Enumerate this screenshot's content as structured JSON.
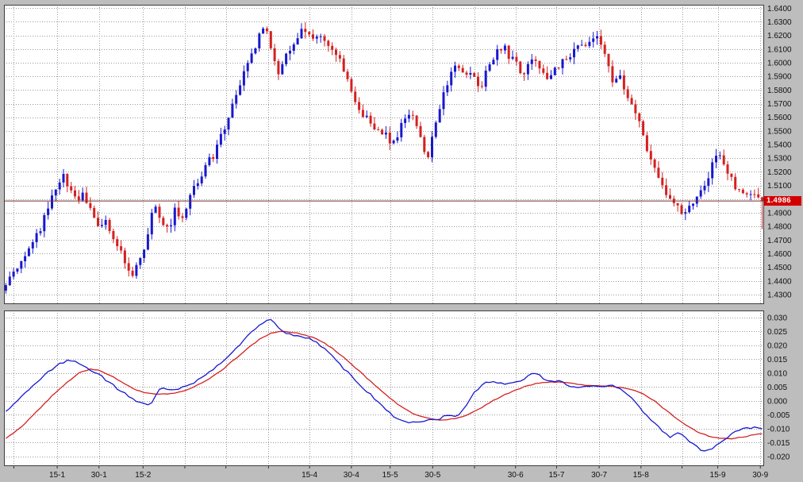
{
  "window": {
    "background_color": "#bdbdbd",
    "panel_background": "#ffffff",
    "panel_border_color": "#3c3c3c",
    "grid_color": "#9a9a9a",
    "label_color": "#111111"
  },
  "chart_data": {
    "type": "candlestick",
    "title": "",
    "price_panel": {
      "type": "candlestick",
      "y_axis_labels": [
        "1.6400",
        "1.6300",
        "1.6200",
        "1.6100",
        "1.6000",
        "1.5900",
        "1.5800",
        "1.5700",
        "1.5600",
        "1.5500",
        "1.5400",
        "1.5300",
        "1.5200",
        "1.5100",
        "1.5000",
        "1.4900",
        "1.4800",
        "1.4700",
        "1.4600",
        "1.4500",
        "1.4400",
        "1.4300"
      ],
      "y_min": 1.423,
      "y_max": 1.6425,
      "current_price": 1.4986,
      "current_price_label": "1.4986",
      "last_candle_low": 1.478,
      "candle_count": 198,
      "candle_jitter": 0.006,
      "wick_jitter": 0.005,
      "up_color": "#1818cf",
      "down_color": "#d42020",
      "price_line_color": "#7b3030",
      "price_tag_color": "#d40000",
      "close_keypoints": [
        [
          0,
          1.437
        ],
        [
          0.008,
          1.444
        ],
        [
          0.02,
          1.452
        ],
        [
          0.032,
          1.464
        ],
        [
          0.045,
          1.478
        ],
        [
          0.057,
          1.495
        ],
        [
          0.068,
          1.512
        ],
        [
          0.075,
          1.519
        ],
        [
          0.085,
          1.508
        ],
        [
          0.093,
          1.497
        ],
        [
          0.102,
          1.503
        ],
        [
          0.112,
          1.492
        ],
        [
          0.122,
          1.481
        ],
        [
          0.13,
          1.485
        ],
        [
          0.14,
          1.474
        ],
        [
          0.15,
          1.463
        ],
        [
          0.16,
          1.449
        ],
        [
          0.167,
          1.443
        ],
        [
          0.176,
          1.456
        ],
        [
          0.186,
          1.47
        ],
        [
          0.196,
          1.499
        ],
        [
          0.204,
          1.484
        ],
        [
          0.214,
          1.477
        ],
        [
          0.223,
          1.491
        ],
        [
          0.233,
          1.487
        ],
        [
          0.243,
          1.503
        ],
        [
          0.253,
          1.512
        ],
        [
          0.263,
          1.523
        ],
        [
          0.273,
          1.531
        ],
        [
          0.283,
          1.544
        ],
        [
          0.293,
          1.559
        ],
        [
          0.303,
          1.573
        ],
        [
          0.313,
          1.591
        ],
        [
          0.323,
          1.605
        ],
        [
          0.333,
          1.617
        ],
        [
          0.343,
          1.63
        ],
        [
          0.351,
          1.611
        ],
        [
          0.359,
          1.591
        ],
        [
          0.367,
          1.601
        ],
        [
          0.377,
          1.613
        ],
        [
          0.387,
          1.621
        ],
        [
          0.396,
          1.624
        ],
        [
          0.404,
          1.615
        ],
        [
          0.413,
          1.622
        ],
        [
          0.422,
          1.618
        ],
        [
          0.432,
          1.608
        ],
        [
          0.441,
          1.601
        ],
        [
          0.451,
          1.589
        ],
        [
          0.46,
          1.575
        ],
        [
          0.469,
          1.564
        ],
        [
          0.479,
          1.559
        ],
        [
          0.489,
          1.553
        ],
        [
          0.499,
          1.548
        ],
        [
          0.509,
          1.542
        ],
        [
          0.519,
          1.549
        ],
        [
          0.529,
          1.559
        ],
        [
          0.539,
          1.562
        ],
        [
          0.549,
          1.546
        ],
        [
          0.557,
          1.53
        ],
        [
          0.567,
          1.552
        ],
        [
          0.577,
          1.573
        ],
        [
          0.587,
          1.592
        ],
        [
          0.597,
          1.599
        ],
        [
          0.607,
          1.589
        ],
        [
          0.617,
          1.593
        ],
        [
          0.627,
          1.582
        ],
        [
          0.637,
          1.595
        ],
        [
          0.647,
          1.605
        ],
        [
          0.656,
          1.613
        ],
        [
          0.665,
          1.605
        ],
        [
          0.675,
          1.598
        ],
        [
          0.685,
          1.592
        ],
        [
          0.695,
          1.601
        ],
        [
          0.705,
          1.598
        ],
        [
          0.715,
          1.588
        ],
        [
          0.725,
          1.593
        ],
        [
          0.735,
          1.601
        ],
        [
          0.745,
          1.606
        ],
        [
          0.755,
          1.61
        ],
        [
          0.766,
          1.615
        ],
        [
          0.778,
          1.621
        ],
        [
          0.788,
          1.612
        ],
        [
          0.795,
          1.598
        ],
        [
          0.803,
          1.585
        ],
        [
          0.812,
          1.592
        ],
        [
          0.82,
          1.578
        ],
        [
          0.83,
          1.565
        ],
        [
          0.838,
          1.554
        ],
        [
          0.85,
          1.533
        ],
        [
          0.862,
          1.516
        ],
        [
          0.872,
          1.504
        ],
        [
          0.882,
          1.496
        ],
        [
          0.893,
          1.49
        ],
        [
          0.905,
          1.493
        ],
        [
          0.915,
          1.501
        ],
        [
          0.925,
          1.513
        ],
        [
          0.935,
          1.526
        ],
        [
          0.943,
          1.532
        ],
        [
          0.952,
          1.522
        ],
        [
          0.962,
          1.512
        ],
        [
          0.972,
          1.505
        ],
        [
          0.982,
          1.5
        ],
        [
          0.991,
          1.503
        ],
        [
          1,
          1.4986
        ]
      ]
    },
    "indicator_panel": {
      "type": "line",
      "y_axis_labels": [
        "0.030",
        "0.025",
        "0.020",
        "0.015",
        "0.010",
        "0.005",
        "0.000",
        "-0.005",
        "-0.010",
        "-0.015",
        "-0.020"
      ],
      "y_min": -0.0235,
      "y_max": 0.0325,
      "line_jitter": 0.0008,
      "macd_color": "#1818cf",
      "signal_color": "#d42020",
      "macd_keypoints": [
        [
          0,
          -0.004
        ],
        [
          0.012,
          -0.001
        ],
        [
          0.03,
          0.004
        ],
        [
          0.05,
          0.009
        ],
        [
          0.068,
          0.013
        ],
        [
          0.082,
          0.0145
        ],
        [
          0.095,
          0.014
        ],
        [
          0.11,
          0.0115
        ],
        [
          0.125,
          0.009
        ],
        [
          0.14,
          0.006
        ],
        [
          0.155,
          0.003
        ],
        [
          0.168,
          0.0005
        ],
        [
          0.182,
          -0.001
        ],
        [
          0.192,
          -0.0012
        ],
        [
          0.2,
          0.003
        ],
        [
          0.208,
          0.005
        ],
        [
          0.218,
          0.004
        ],
        [
          0.23,
          0.0045
        ],
        [
          0.242,
          0.0055
        ],
        [
          0.255,
          0.0075
        ],
        [
          0.268,
          0.01
        ],
        [
          0.282,
          0.0133
        ],
        [
          0.296,
          0.0168
        ],
        [
          0.31,
          0.0205
        ],
        [
          0.324,
          0.0245
        ],
        [
          0.338,
          0.028
        ],
        [
          0.347,
          0.0295
        ],
        [
          0.355,
          0.028
        ],
        [
          0.362,
          0.0256
        ],
        [
          0.372,
          0.024
        ],
        [
          0.383,
          0.0235
        ],
        [
          0.394,
          0.023
        ],
        [
          0.402,
          0.0226
        ],
        [
          0.41,
          0.0214
        ],
        [
          0.422,
          0.0185
        ],
        [
          0.435,
          0.015
        ],
        [
          0.449,
          0.011
        ],
        [
          0.463,
          0.0072
        ],
        [
          0.477,
          0.0035
        ],
        [
          0.49,
          0.0002
        ],
        [
          0.502,
          -0.003
        ],
        [
          0.513,
          -0.0055
        ],
        [
          0.525,
          -0.0072
        ],
        [
          0.537,
          -0.008
        ],
        [
          0.548,
          -0.0075
        ],
        [
          0.558,
          -0.0068
        ],
        [
          0.567,
          -0.0072
        ],
        [
          0.576,
          -0.006
        ],
        [
          0.584,
          -0.005
        ],
        [
          0.591,
          -0.0058
        ],
        [
          0.6,
          -0.0048
        ],
        [
          0.61,
          -0.0008
        ],
        [
          0.62,
          0.003
        ],
        [
          0.63,
          0.006
        ],
        [
          0.64,
          0.007
        ],
        [
          0.651,
          0.0065
        ],
        [
          0.663,
          0.006
        ],
        [
          0.674,
          0.0068
        ],
        [
          0.685,
          0.008
        ],
        [
          0.694,
          0.0095
        ],
        [
          0.702,
          0.01
        ],
        [
          0.711,
          0.008
        ],
        [
          0.721,
          0.0068
        ],
        [
          0.731,
          0.0073
        ],
        [
          0.741,
          0.006
        ],
        [
          0.751,
          0.005
        ],
        [
          0.761,
          0.0048
        ],
        [
          0.771,
          0.0052
        ],
        [
          0.781,
          0.0056
        ],
        [
          0.791,
          0.005
        ],
        [
          0.8,
          0.006
        ],
        [
          0.81,
          0.0045
        ],
        [
          0.82,
          0.0028
        ],
        [
          0.83,
          0.0002
        ],
        [
          0.84,
          -0.003
        ],
        [
          0.85,
          -0.006
        ],
        [
          0.861,
          -0.009
        ],
        [
          0.871,
          -0.0118
        ],
        [
          0.879,
          -0.013
        ],
        [
          0.888,
          -0.0116
        ],
        [
          0.896,
          -0.0126
        ],
        [
          0.906,
          -0.015
        ],
        [
          0.915,
          -0.017
        ],
        [
          0.922,
          -0.018
        ],
        [
          0.931,
          -0.0174
        ],
        [
          0.941,
          -0.0157
        ],
        [
          0.951,
          -0.0137
        ],
        [
          0.961,
          -0.0117
        ],
        [
          0.971,
          -0.0104
        ],
        [
          0.981,
          -0.0097
        ],
        [
          0.991,
          -0.0095
        ],
        [
          1,
          -0.01
        ]
      ],
      "signal_keypoints": [
        [
          0,
          -0.0135
        ],
        [
          0.02,
          -0.0095
        ],
        [
          0.04,
          -0.004
        ],
        [
          0.06,
          0.0015
        ],
        [
          0.08,
          0.0065
        ],
        [
          0.098,
          0.0102
        ],
        [
          0.112,
          0.0115
        ],
        [
          0.126,
          0.0108
        ],
        [
          0.14,
          0.0088
        ],
        [
          0.155,
          0.0065
        ],
        [
          0.17,
          0.0042
        ],
        [
          0.185,
          0.0028
        ],
        [
          0.2,
          0.0022
        ],
        [
          0.215,
          0.0025
        ],
        [
          0.23,
          0.0032
        ],
        [
          0.245,
          0.0045
        ],
        [
          0.26,
          0.0065
        ],
        [
          0.275,
          0.009
        ],
        [
          0.29,
          0.012
        ],
        [
          0.305,
          0.0155
        ],
        [
          0.32,
          0.019
        ],
        [
          0.335,
          0.022
        ],
        [
          0.35,
          0.0242
        ],
        [
          0.362,
          0.025
        ],
        [
          0.375,
          0.0248
        ],
        [
          0.39,
          0.024
        ],
        [
          0.405,
          0.023
        ],
        [
          0.42,
          0.021
        ],
        [
          0.435,
          0.0182
        ],
        [
          0.45,
          0.0148
        ],
        [
          0.465,
          0.0112
        ],
        [
          0.48,
          0.0075
        ],
        [
          0.495,
          0.004
        ],
        [
          0.51,
          0.0005
        ],
        [
          0.525,
          -0.0025
        ],
        [
          0.54,
          -0.0048
        ],
        [
          0.555,
          -0.0062
        ],
        [
          0.57,
          -0.0068
        ],
        [
          0.585,
          -0.0068
        ],
        [
          0.6,
          -0.006
        ],
        [
          0.615,
          -0.0045
        ],
        [
          0.63,
          -0.0022
        ],
        [
          0.645,
          0.0002
        ],
        [
          0.66,
          0.0022
        ],
        [
          0.675,
          0.004
        ],
        [
          0.69,
          0.0055
        ],
        [
          0.705,
          0.0065
        ],
        [
          0.72,
          0.0068
        ],
        [
          0.735,
          0.0068
        ],
        [
          0.75,
          0.0062
        ],
        [
          0.765,
          0.0057
        ],
        [
          0.78,
          0.0053
        ],
        [
          0.795,
          0.0052
        ],
        [
          0.81,
          0.005
        ],
        [
          0.825,
          0.0042
        ],
        [
          0.84,
          0.0028
        ],
        [
          0.855,
          0.0005
        ],
        [
          0.87,
          -0.0028
        ],
        [
          0.885,
          -0.006
        ],
        [
          0.9,
          -0.009
        ],
        [
          0.915,
          -0.0112
        ],
        [
          0.93,
          -0.0128
        ],
        [
          0.945,
          -0.0135
        ],
        [
          0.96,
          -0.0136
        ],
        [
          0.975,
          -0.013
        ],
        [
          0.99,
          -0.0122
        ],
        [
          1,
          -0.0118
        ]
      ]
    },
    "x_axis": {
      "gridlines": [
        {
          "f": 0.013,
          "label": ""
        },
        {
          "f": 0.07,
          "label": "15-1"
        },
        {
          "f": 0.125,
          "label": "30-1"
        },
        {
          "f": 0.183,
          "label": "15-2"
        },
        {
          "f": 0.238,
          "label": ""
        },
        {
          "f": 0.292,
          "label": ""
        },
        {
          "f": 0.348,
          "label": ""
        },
        {
          "f": 0.402,
          "label": "15-4"
        },
        {
          "f": 0.457,
          "label": "30-4"
        },
        {
          "f": 0.508,
          "label": "15-5"
        },
        {
          "f": 0.564,
          "label": "30-5"
        },
        {
          "f": 0.619,
          "label": ""
        },
        {
          "f": 0.673,
          "label": "30-6"
        },
        {
          "f": 0.727,
          "label": "15-7"
        },
        {
          "f": 0.783,
          "label": "30-7"
        },
        {
          "f": 0.838,
          "label": "15-8"
        },
        {
          "f": 0.892,
          "label": ""
        },
        {
          "f": 0.939,
          "label": "15-9"
        },
        {
          "f": 0.995,
          "label": "30-9"
        }
      ]
    }
  }
}
